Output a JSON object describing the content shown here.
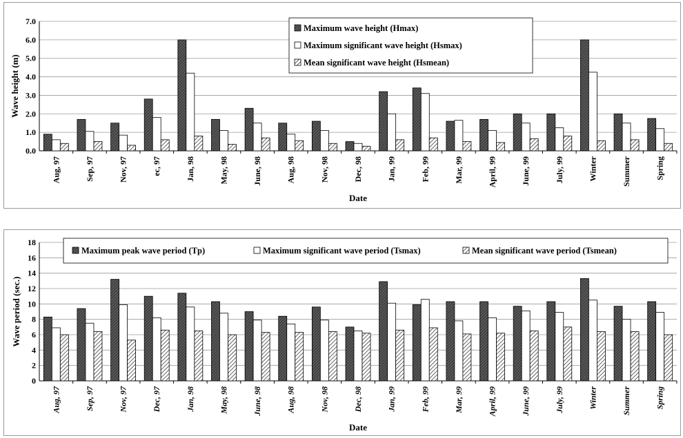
{
  "chart_data": [
    {
      "type": "bar",
      "xlabel": "Date",
      "ylabel": "Wave height (m)",
      "ylim": [
        0,
        7
      ],
      "yticks": [
        "0.0",
        "1.0",
        "2.0",
        "3.0",
        "4.0",
        "5.0",
        "6.0",
        "7.0"
      ],
      "grid": true,
      "legend_position": "top-right",
      "categories": [
        "Aug, 97",
        "Sep, 97",
        "Nov, 97",
        "ec, 97",
        "Jan, 98",
        "May, 98",
        "June, 98",
        "Aug, 98",
        "Nov, 98",
        "Dec, 98",
        "Jan, 99",
        "Feb, 99",
        "Mar, 99",
        "April, 99",
        "June, 99",
        "July, 99",
        "Winter",
        "Summer",
        "Spring"
      ],
      "series": [
        {
          "name": "Maximum wave height (Hmax)",
          "pattern": "dark",
          "values": [
            0.9,
            1.7,
            1.5,
            2.8,
            6.0,
            1.7,
            2.3,
            1.5,
            1.6,
            0.5,
            3.2,
            3.4,
            1.6,
            1.7,
            2.0,
            2.0,
            6.0,
            2.0,
            1.75
          ]
        },
        {
          "name": "Maximum significant wave height (Hsmax)",
          "pattern": "white",
          "values": [
            0.6,
            1.05,
            0.85,
            1.8,
            4.2,
            1.1,
            1.5,
            0.9,
            1.1,
            0.4,
            2.0,
            3.1,
            1.65,
            1.1,
            1.5,
            1.25,
            4.25,
            1.5,
            1.2
          ]
        },
        {
          "name": "Mean significant wave height (Hsmean)",
          "pattern": "hatch",
          "values": [
            0.4,
            0.5,
            0.3,
            0.6,
            0.8,
            0.35,
            0.7,
            0.55,
            0.4,
            0.25,
            0.6,
            0.7,
            0.5,
            0.45,
            0.65,
            0.8,
            0.55,
            0.6,
            0.4
          ]
        }
      ]
    },
    {
      "type": "bar",
      "xlabel": "Date",
      "ylabel": "Wave period (sec.)",
      "ylim": [
        0,
        18
      ],
      "yticks": [
        "0",
        "2",
        "4",
        "6",
        "8",
        "10",
        "12",
        "14",
        "16",
        "18"
      ],
      "grid": true,
      "legend_position": "top",
      "categories": [
        "Aug, 97",
        "Sep, 97",
        "Nov, 97",
        "Dec, 97",
        "Jan, 98",
        "May, 98",
        "June, 98",
        "Aug, 98",
        "Nov, 98",
        "Dec, 98",
        "Jan, 99",
        "Feb, 99",
        "Mar, 99",
        "April, 99",
        "June, 99",
        "July, 99",
        "Winter",
        "Summer",
        "Spring"
      ],
      "series": [
        {
          "name": "Maximum peak wave period (Tp)",
          "pattern": "dark",
          "values": [
            8.3,
            9.4,
            13.2,
            11.0,
            11.4,
            10.3,
            9.0,
            8.4,
            9.6,
            7.0,
            12.9,
            9.9,
            10.3,
            10.3,
            9.7,
            10.3,
            13.3,
            9.7,
            10.3
          ]
        },
        {
          "name": "Maximum significant wave period (Tsmax)",
          "pattern": "white",
          "values": [
            6.9,
            7.5,
            9.9,
            8.2,
            9.6,
            8.8,
            7.9,
            7.4,
            7.9,
            6.5,
            10.1,
            10.6,
            7.8,
            8.2,
            9.1,
            8.9,
            10.5,
            8.0,
            8.9
          ]
        },
        {
          "name": "Mean significant wave period (Tsmean)",
          "pattern": "hatch",
          "values": [
            6.0,
            6.4,
            5.3,
            6.6,
            6.5,
            6.0,
            6.3,
            6.3,
            6.4,
            6.2,
            6.6,
            6.9,
            6.1,
            6.2,
            6.5,
            7.0,
            6.4,
            6.4,
            6.0
          ]
        }
      ]
    }
  ]
}
